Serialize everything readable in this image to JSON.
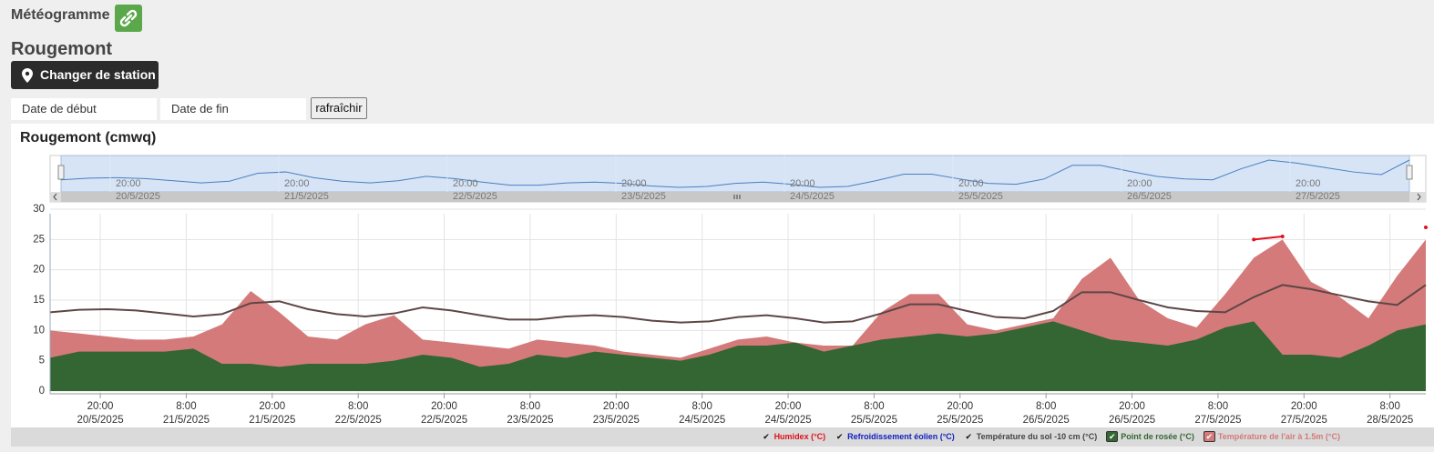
{
  "header": {
    "title": "Météogramme",
    "station": "Rougemont",
    "change_button": "Changer de station"
  },
  "form": {
    "start_placeholder": "Date de début",
    "end_placeholder": "Date de fin",
    "refresh_button": "rafraîchir"
  },
  "chart_data": {
    "type": "line",
    "title": "Rougemont (cmwq)",
    "x": [
      "2025-05-20T13:00",
      "2025-05-20T17:00",
      "2025-05-20T21:00",
      "2025-05-21T01:00",
      "2025-05-21T05:00",
      "2025-05-21T09:00",
      "2025-05-21T13:00",
      "2025-05-21T17:00",
      "2025-05-21T21:00",
      "2025-05-22T01:00",
      "2025-05-22T05:00",
      "2025-05-22T09:00",
      "2025-05-22T13:00",
      "2025-05-22T17:00",
      "2025-05-22T21:00",
      "2025-05-23T01:00",
      "2025-05-23T05:00",
      "2025-05-23T09:00",
      "2025-05-23T13:00",
      "2025-05-23T17:00",
      "2025-05-23T21:00",
      "2025-05-24T01:00",
      "2025-05-24T05:00",
      "2025-05-24T09:00",
      "2025-05-24T13:00",
      "2025-05-24T17:00",
      "2025-05-24T21:00",
      "2025-05-25T01:00",
      "2025-05-25T05:00",
      "2025-05-25T09:00",
      "2025-05-25T13:00",
      "2025-05-25T17:00",
      "2025-05-25T21:00",
      "2025-05-26T01:00",
      "2025-05-26T05:00",
      "2025-05-26T09:00",
      "2025-05-26T13:00",
      "2025-05-26T17:00",
      "2025-05-26T21:00",
      "2025-05-27T01:00",
      "2025-05-27T05:00",
      "2025-05-27T09:00",
      "2025-05-27T13:00",
      "2025-05-27T17:00",
      "2025-05-27T21:00",
      "2025-05-28T01:00",
      "2025-05-28T05:00",
      "2025-05-28T09:00",
      "2025-05-28T13:00"
    ],
    "xlim": [
      "2025-05-20T13:00",
      "2025-05-28T13:00"
    ],
    "xticks": [
      {
        "value": "2025-05-20T20:00",
        "label": "20:00\n20/5/2025"
      },
      {
        "value": "2025-05-21T08:00",
        "label": "8:00\n21/5/2025"
      },
      {
        "value": "2025-05-21T20:00",
        "label": "20:00\n21/5/2025"
      },
      {
        "value": "2025-05-22T08:00",
        "label": "8:00\n22/5/2025"
      },
      {
        "value": "2025-05-22T20:00",
        "label": "20:00\n22/5/2025"
      },
      {
        "value": "2025-05-23T08:00",
        "label": "8:00\n23/5/2025"
      },
      {
        "value": "2025-05-23T20:00",
        "label": "20:00\n23/5/2025"
      },
      {
        "value": "2025-05-24T08:00",
        "label": "8:00\n24/5/2025"
      },
      {
        "value": "2025-05-24T20:00",
        "label": "20:00\n24/5/2025"
      },
      {
        "value": "2025-05-25T08:00",
        "label": "8:00\n25/5/2025"
      },
      {
        "value": "2025-05-25T20:00",
        "label": "20:00\n25/5/2025"
      },
      {
        "value": "2025-05-26T08:00",
        "label": "8:00\n26/5/2025"
      },
      {
        "value": "2025-05-26T20:00",
        "label": "20:00\n26/5/2025"
      },
      {
        "value": "2025-05-27T08:00",
        "label": "8:00\n27/5/2025"
      },
      {
        "value": "2025-05-27T20:00",
        "label": "20:00\n27/5/2025"
      },
      {
        "value": "2025-05-28T08:00",
        "label": "8:00\n28/5/2025"
      }
    ],
    "ylim": [
      0,
      30
    ],
    "yticks": [
      0,
      5,
      10,
      15,
      20,
      25,
      30
    ],
    "grid": true,
    "legend": "bottom-right",
    "navigator": {
      "xticks": [
        {
          "value": "2025-05-20T20:00",
          "label": "20:00\n20/5/2025"
        },
        {
          "value": "2025-05-21T20:00",
          "label": "20:00\n21/5/2025"
        },
        {
          "value": "2025-05-22T20:00",
          "label": "20:00\n22/5/2025"
        },
        {
          "value": "2025-05-23T20:00",
          "label": "20:00\n23/5/2025"
        },
        {
          "value": "2025-05-24T20:00",
          "label": "20:00\n24/5/2025"
        },
        {
          "value": "2025-05-25T20:00",
          "label": "20:00\n25/5/2025"
        },
        {
          "value": "2025-05-26T20:00",
          "label": "20:00\n26/5/2025"
        },
        {
          "value": "2025-05-27T20:00",
          "label": "20:00\n27/5/2025"
        }
      ]
    },
    "series": [
      {
        "name": "Humidex (°C)",
        "type": "line",
        "marker": true,
        "color": "#e0101a",
        "values": [
          null,
          null,
          null,
          null,
          null,
          null,
          null,
          null,
          null,
          null,
          null,
          null,
          null,
          null,
          null,
          null,
          null,
          null,
          null,
          null,
          null,
          null,
          null,
          null,
          null,
          null,
          null,
          null,
          null,
          null,
          null,
          null,
          null,
          null,
          null,
          null,
          null,
          null,
          null,
          null,
          null,
          null,
          25,
          25.5,
          null,
          null,
          null,
          null,
          27
        ]
      },
      {
        "name": "Refroidissement éolien (°C)",
        "type": "line",
        "color": "#1020c0",
        "values": [
          null,
          null,
          null,
          null,
          null,
          null,
          null,
          null,
          null,
          null,
          null,
          null,
          null,
          null,
          null,
          null,
          null,
          null,
          null,
          null,
          null,
          null,
          null,
          null,
          null,
          null,
          null,
          null,
          null,
          null,
          null,
          null,
          null,
          null,
          null,
          null,
          null,
          null,
          null,
          null,
          null,
          null,
          null,
          null,
          null,
          null,
          null,
          null,
          null
        ]
      },
      {
        "name": "Température du sol -10 cm (°C)",
        "type": "line",
        "color": "#5e4646",
        "values": [
          13,
          13.4,
          13.5,
          13.3,
          12.8,
          12.3,
          12.7,
          14.5,
          14.8,
          13.5,
          12.7,
          12.3,
          12.8,
          13.8,
          13.3,
          12.5,
          11.8,
          11.8,
          12.3,
          12.5,
          12.2,
          11.6,
          11.3,
          11.5,
          12.2,
          12.5,
          12,
          11.3,
          11.5,
          12.8,
          14.3,
          14.3,
          13.2,
          12.2,
          12,
          13.2,
          16.3,
          16.3,
          15,
          13.8,
          13.2,
          13,
          15.5,
          17.5,
          16.8,
          15.8,
          14.8,
          14.2,
          17.5
        ]
      },
      {
        "name": "Point de rosée (°C)",
        "type": "area",
        "color": "#336633",
        "values": [
          5.5,
          6.5,
          6.5,
          6.5,
          6.5,
          7,
          4.5,
          4.5,
          4,
          4.5,
          4.5,
          4.5,
          5,
          6,
          5.5,
          4,
          4.5,
          6,
          5.5,
          6.5,
          6,
          5.5,
          5,
          6,
          7.5,
          7.5,
          8,
          6.5,
          7.5,
          8.5,
          9,
          9.5,
          9,
          9.5,
          10.5,
          11.5,
          10,
          8.5,
          8,
          7.5,
          8.5,
          10.5,
          11.5,
          6,
          6,
          5.5,
          7.5,
          10,
          11
        ]
      },
      {
        "name": "Température de l'air à 1.5m (°C)",
        "type": "area",
        "color": "#d47a7a",
        "values": [
          10,
          9.5,
          9,
          8.5,
          8.5,
          9,
          11,
          16.5,
          13,
          9,
          8.5,
          11,
          12.5,
          8.5,
          8,
          7.5,
          7,
          8.5,
          8,
          7.5,
          6.5,
          6,
          5.5,
          7,
          8.5,
          9,
          8,
          7.5,
          7.5,
          13,
          16,
          16,
          11,
          10,
          11,
          12,
          18.5,
          22,
          15,
          12,
          10.5,
          16,
          22,
          25,
          18,
          15.5,
          12,
          19,
          25
        ]
      }
    ]
  }
}
